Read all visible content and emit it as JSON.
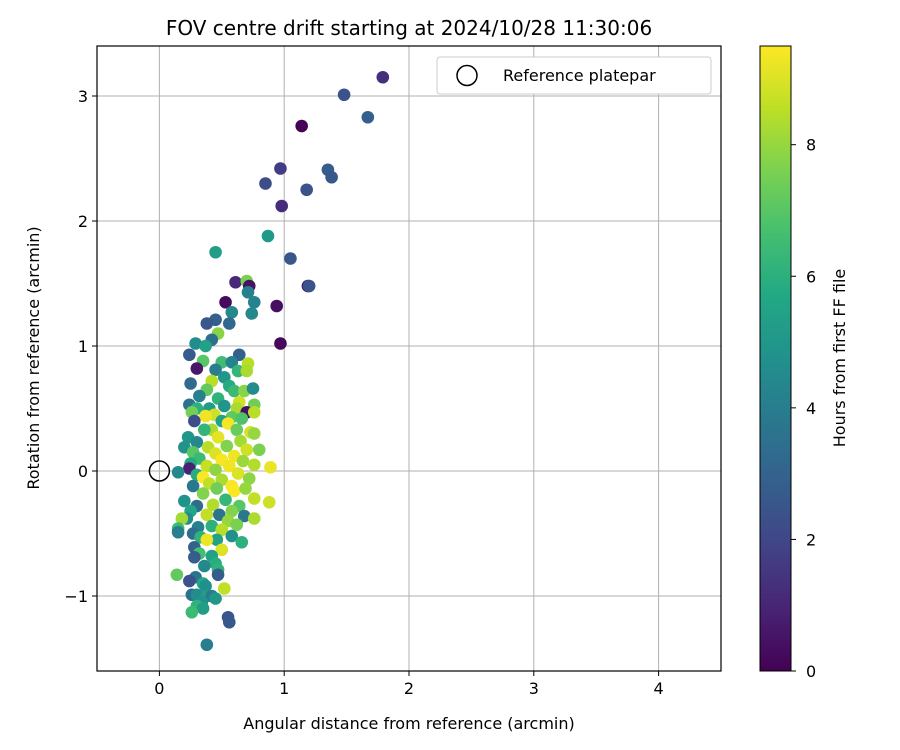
{
  "chart_data": {
    "type": "scatter",
    "title": "FOV centre drift starting at 2024/10/28 11:30:06",
    "xlabel": "Angular distance from reference (arcmin)",
    "ylabel": "Rotation from reference (arcmin)",
    "xlim": [
      -0.5,
      4.5
    ],
    "ylim": [
      -1.6,
      3.4
    ],
    "xticks": [
      0,
      1,
      2,
      3,
      4
    ],
    "yticks": [
      -1,
      0,
      1,
      2,
      3
    ],
    "xtick_labels": [
      "0",
      "1",
      "2",
      "3",
      "4"
    ],
    "ytick_labels": [
      "−1",
      "0",
      "1",
      "2",
      "3"
    ],
    "grid": true,
    "legend": {
      "position": "top-right",
      "entries": [
        {
          "label": "Reference platepar",
          "marker": "open-circle"
        }
      ]
    },
    "reference_point": {
      "x": 0,
      "y": 0
    },
    "colorbar": {
      "label": "Hours from first FF file",
      "min": 0,
      "max": 9.5,
      "ticks": [
        0,
        2,
        4,
        6,
        8
      ],
      "tick_labels": [
        "0",
        "2",
        "4",
        "6",
        "8"
      ],
      "colormap": "viridis"
    },
    "series": [
      {
        "points": [
          [
            1.79,
            3.15,
            1.3
          ],
          [
            1.48,
            3.01,
            2.4
          ],
          [
            1.67,
            2.83,
            2.9
          ],
          [
            1.14,
            2.76,
            0.1
          ],
          [
            0.97,
            2.42,
            1.7
          ],
          [
            1.35,
            2.41,
            2.8
          ],
          [
            1.38,
            2.35,
            2.6
          ],
          [
            0.85,
            2.3,
            2.2
          ],
          [
            1.18,
            2.25,
            2.4
          ],
          [
            0.98,
            2.12,
            1.2
          ],
          [
            0.87,
            1.88,
            5.1
          ],
          [
            0.45,
            1.75,
            5.3
          ],
          [
            1.05,
            1.7,
            2.6
          ],
          [
            0.61,
            1.51,
            1.1
          ],
          [
            0.7,
            1.52,
            7.6
          ],
          [
            0.72,
            1.48,
            0.5
          ],
          [
            0.71,
            1.43,
            4.1
          ],
          [
            1.19,
            1.48,
            0.6
          ],
          [
            1.2,
            1.48,
            2.4
          ],
          [
            0.53,
            1.35,
            0.3
          ],
          [
            0.76,
            1.35,
            4.2
          ],
          [
            0.94,
            1.32,
            0.4
          ],
          [
            0.58,
            1.27,
            4.4
          ],
          [
            0.74,
            1.26,
            4.4
          ],
          [
            0.45,
            1.21,
            2.9
          ],
          [
            0.38,
            1.18,
            2.6
          ],
          [
            0.56,
            1.18,
            3.2
          ],
          [
            0.47,
            1.1,
            7.8
          ],
          [
            0.42,
            1.05,
            3.5
          ],
          [
            0.97,
            1.02,
            0.2
          ],
          [
            0.29,
            1.02,
            4.6
          ],
          [
            0.37,
            1.0,
            5.4
          ],
          [
            0.24,
            0.93,
            2.7
          ],
          [
            0.64,
            0.93,
            3.0
          ],
          [
            0.35,
            0.88,
            7.0
          ],
          [
            0.5,
            0.87,
            6.5
          ],
          [
            0.58,
            0.87,
            4.2
          ],
          [
            0.71,
            0.86,
            8.5
          ],
          [
            0.3,
            0.82,
            0.6
          ],
          [
            0.45,
            0.81,
            4.0
          ],
          [
            0.63,
            0.8,
            6.2
          ],
          [
            0.7,
            0.8,
            8.3
          ],
          [
            0.52,
            0.75,
            5.0
          ],
          [
            0.25,
            0.7,
            3.3
          ],
          [
            0.42,
            0.72,
            8.5
          ],
          [
            0.56,
            0.68,
            5.8
          ],
          [
            0.38,
            0.65,
            7.2
          ],
          [
            0.6,
            0.64,
            6.4
          ],
          [
            0.68,
            0.64,
            7.8
          ],
          [
            0.32,
            0.6,
            4.1
          ],
          [
            0.75,
            0.66,
            4.6
          ],
          [
            0.47,
            0.58,
            6.1
          ],
          [
            0.64,
            0.55,
            8.8
          ],
          [
            0.24,
            0.53,
            3.6
          ],
          [
            0.3,
            0.5,
            6.0
          ],
          [
            0.4,
            0.5,
            5.2
          ],
          [
            0.52,
            0.52,
            4.9
          ],
          [
            0.62,
            0.5,
            8.3
          ],
          [
            0.76,
            0.53,
            7.4
          ],
          [
            0.7,
            0.47,
            0.4
          ],
          [
            0.26,
            0.47,
            7.5
          ],
          [
            0.44,
            0.45,
            8.8
          ],
          [
            0.37,
            0.44,
            9.3
          ],
          [
            0.58,
            0.43,
            7.1
          ],
          [
            0.66,
            0.42,
            6.8
          ],
          [
            0.76,
            0.47,
            8.5
          ],
          [
            0.28,
            0.4,
            2.2
          ],
          [
            0.5,
            0.4,
            5.5
          ],
          [
            0.55,
            0.38,
            9.4
          ],
          [
            0.42,
            0.33,
            8.3
          ],
          [
            0.62,
            0.33,
            7.3
          ],
          [
            0.36,
            0.33,
            6.2
          ],
          [
            0.73,
            0.31,
            8.9
          ],
          [
            0.76,
            0.3,
            8.0
          ],
          [
            0.23,
            0.27,
            5.0
          ],
          [
            0.47,
            0.27,
            9.1
          ],
          [
            0.3,
            0.23,
            4.4
          ],
          [
            0.65,
            0.24,
            8.2
          ],
          [
            0.54,
            0.2,
            7.7
          ],
          [
            0.39,
            0.19,
            8.5
          ],
          [
            0.2,
            0.19,
            4.8
          ],
          [
            0.7,
            0.17,
            8.8
          ],
          [
            0.8,
            0.17,
            7.6
          ],
          [
            0.27,
            0.15,
            7.0
          ],
          [
            0.45,
            0.14,
            9.0
          ],
          [
            0.6,
            0.12,
            9.3
          ],
          [
            0.32,
            0.1,
            6.4
          ],
          [
            0.5,
            0.09,
            9.4
          ],
          [
            0.67,
            0.08,
            8.1
          ],
          [
            0.25,
            0.06,
            5.8
          ],
          [
            0.38,
            0.04,
            8.7
          ],
          [
            0.56,
            0.04,
            9.3
          ],
          [
            0.76,
            0.05,
            8.4
          ],
          [
            0.89,
            0.03,
            9.2
          ],
          [
            0.24,
            0.02,
            0.9
          ],
          [
            0.45,
            0.01,
            7.9
          ],
          [
            0.15,
            -0.01,
            4.4
          ],
          [
            0.3,
            -0.03,
            5.9
          ],
          [
            0.63,
            -0.02,
            9.0
          ],
          [
            0.35,
            -0.05,
            9.5
          ],
          [
            0.5,
            -0.07,
            8.3
          ],
          [
            0.72,
            -0.06,
            7.9
          ],
          [
            0.4,
            -0.1,
            8.6
          ],
          [
            0.27,
            -0.12,
            3.8
          ],
          [
            0.58,
            -0.12,
            9.4
          ],
          [
            0.46,
            -0.14,
            7.4
          ],
          [
            0.6,
            -0.16,
            9.5
          ],
          [
            0.69,
            -0.14,
            8.0
          ],
          [
            0.35,
            -0.18,
            7.7
          ],
          [
            0.76,
            -0.22,
            8.6
          ],
          [
            0.2,
            -0.24,
            4.8
          ],
          [
            0.53,
            -0.23,
            6.3
          ],
          [
            0.88,
            -0.25,
            8.8
          ],
          [
            0.3,
            -0.28,
            3.4
          ],
          [
            0.43,
            -0.27,
            8.4
          ],
          [
            0.64,
            -0.28,
            7.0
          ],
          [
            0.25,
            -0.32,
            5.6
          ],
          [
            0.58,
            -0.32,
            7.7
          ],
          [
            0.38,
            -0.35,
            8.6
          ],
          [
            0.48,
            -0.35,
            3.6
          ],
          [
            0.22,
            -0.38,
            4.6
          ],
          [
            0.68,
            -0.36,
            3.8
          ],
          [
            0.18,
            -0.38,
            8.2
          ],
          [
            0.76,
            -0.38,
            8.3
          ],
          [
            0.55,
            -0.4,
            8.0
          ],
          [
            0.42,
            -0.44,
            6.0
          ],
          [
            0.31,
            -0.45,
            4.1
          ],
          [
            0.62,
            -0.43,
            7.6
          ],
          [
            0.15,
            -0.46,
            6.4
          ],
          [
            0.5,
            -0.47,
            8.5
          ],
          [
            0.27,
            -0.5,
            3.5
          ],
          [
            0.15,
            -0.49,
            4.0
          ],
          [
            0.58,
            -0.52,
            4.7
          ],
          [
            0.33,
            -0.53,
            6.1
          ],
          [
            0.46,
            -0.55,
            5.5
          ],
          [
            0.38,
            -0.55,
            9.3
          ],
          [
            0.66,
            -0.57,
            6.0
          ],
          [
            0.28,
            -0.61,
            3.0
          ],
          [
            0.5,
            -0.63,
            9.0
          ],
          [
            0.32,
            -0.66,
            6.6
          ],
          [
            0.42,
            -0.68,
            5.4
          ],
          [
            0.28,
            -0.69,
            2.8
          ],
          [
            0.45,
            -0.74,
            5.9
          ],
          [
            0.36,
            -0.76,
            4.4
          ],
          [
            0.47,
            -0.79,
            6.1
          ],
          [
            0.47,
            -0.83,
            2.8
          ],
          [
            0.14,
            -0.83,
            7.2
          ],
          [
            0.29,
            -0.85,
            3.6
          ],
          [
            0.24,
            -0.88,
            2.4
          ],
          [
            0.35,
            -0.9,
            5.7
          ],
          [
            0.37,
            -0.92,
            4.7
          ],
          [
            0.52,
            -0.94,
            8.6
          ],
          [
            0.26,
            -0.99,
            3.5
          ],
          [
            0.3,
            -0.99,
            4.6
          ],
          [
            0.38,
            -1.0,
            5.3
          ],
          [
            0.42,
            -1.0,
            3.9
          ],
          [
            0.45,
            -1.02,
            5.0
          ],
          [
            0.34,
            -1.05,
            4.8
          ],
          [
            0.3,
            -1.08,
            6.1
          ],
          [
            0.35,
            -1.1,
            5.3
          ],
          [
            0.26,
            -1.13,
            6.4
          ],
          [
            0.55,
            -1.17,
            2.5
          ],
          [
            0.56,
            -1.21,
            2.6
          ],
          [
            0.38,
            -1.39,
            4.0
          ]
        ]
      }
    ]
  }
}
